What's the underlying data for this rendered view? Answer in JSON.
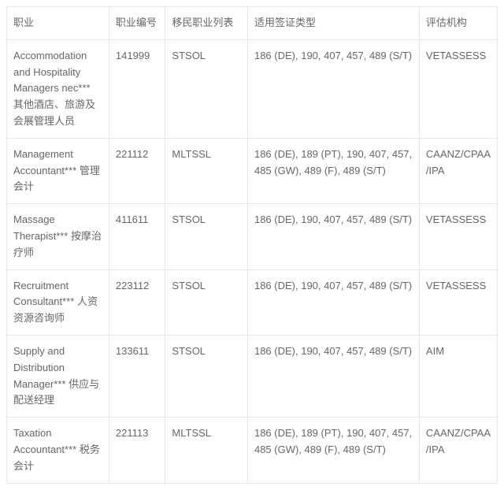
{
  "table": {
    "columns": [
      {
        "label": "职业"
      },
      {
        "label": "职业编号"
      },
      {
        "label": "移民职业列表"
      },
      {
        "label": "适用签证类型"
      },
      {
        "label": "评估机构"
      }
    ],
    "rows": [
      {
        "occupation": "Accommodation and Hospitality Managers nec*** 其他酒店、旅游及会展管理人员",
        "code": "141999",
        "list": "STSOL",
        "visa": "186 (DE), 190, 407, 457, 489 (S/T)",
        "authority": "VETASSESS"
      },
      {
        "occupation": "Management Accountant***\n管理会计",
        "code": "221112",
        "list": "MLTSSL",
        "visa": "186 (DE), 189 (PT), 190, 407, 457, 485 (GW), 489 (F), 489 (S/T)",
        "authority": "CAANZ/CPAA/IPA"
      },
      {
        "occupation": "Massage Therapist***\n按摩治疗师",
        "code": "411611",
        "list": "STSOL",
        "visa": "186 (DE), 190, 407, 457, 489 (S/T)",
        "authority": "VETASSESS"
      },
      {
        "occupation": "Recruitment Consultant***\n人资资源咨询师",
        "code": "223112",
        "list": "STSOL",
        "visa": "186 (DE), 190, 407, 457, 489 (S/T)",
        "authority": "VETASSESS"
      },
      {
        "occupation": "Supply and Distribution Manager***\n供应与配送经理",
        "code": "133611",
        "list": "STSOL",
        "visa": "186 (DE), 190, 407, 457, 489 (S/T)",
        "authority": "AIM"
      },
      {
        "occupation": "Taxation Accountant***\n税务会计",
        "code": "221113",
        "list": "MLTSSL",
        "visa": "186 (DE), 189 (PT), 190, 407, 457, 485 (GW), 489 (F), 489 (S/T)",
        "authority": "CAANZ/CPAA/IPA"
      }
    ]
  }
}
